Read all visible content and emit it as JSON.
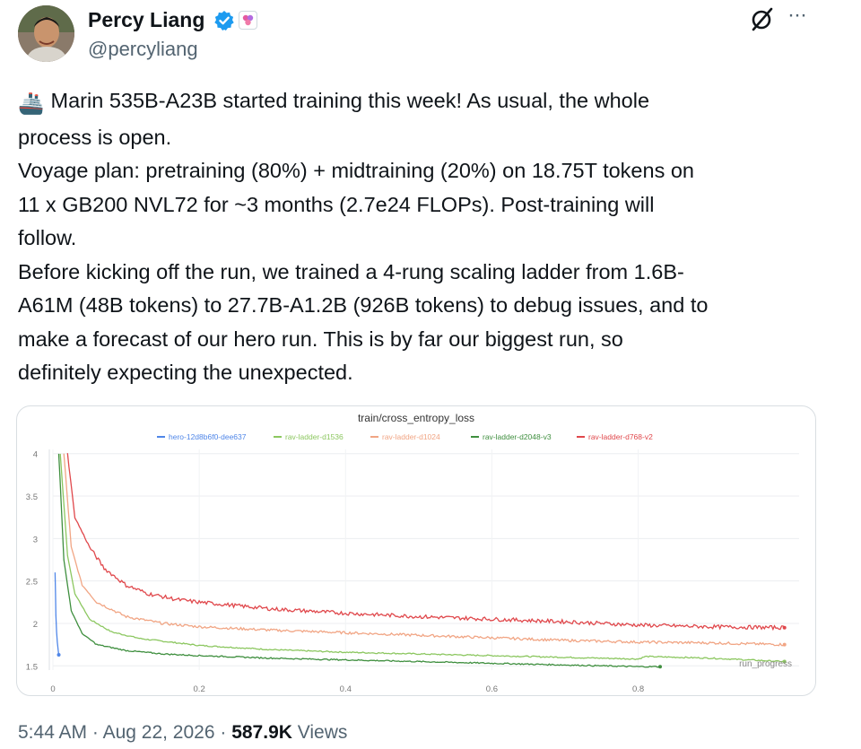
{
  "author": {
    "name": "Percy Liang",
    "handle": "@percyliang",
    "verified_icon": "verified-badge-icon",
    "affiliation_icon": "affiliation-badge-icon"
  },
  "actions": {
    "grok_icon": "grok-icon",
    "more_label": "···"
  },
  "post": {
    "emoji": "🚢",
    "lines": [
      "Marin 535B-A23B started training this week! As usual, the whole",
      "process is open.",
      "Voyage plan: pretraining (80%) + midtraining (20%) on 18.75T tokens on",
      "11 x GB200 NVL72 for ~3 months (2.7e24 FLOPs).  Post-training will",
      "follow.",
      "Before kicking off the run, we trained a 4-rung scaling ladder from 1.6B-",
      "A61M (48B tokens) to 27.7B-A1.2B (926B tokens) to debug issues, and to",
      "make a forecast of our hero run.  This is by far our biggest run, so",
      "definitely expecting the unexpected."
    ]
  },
  "chart_data": {
    "type": "line",
    "title": "train/cross_entropy_loss",
    "xlabel": "run_progress",
    "ylabel": "",
    "xlim": [
      0,
      1.02
    ],
    "ylim": [
      1.45,
      4.05
    ],
    "xticks": [
      "0",
      "0.2",
      "0.4",
      "0.6",
      "0.8"
    ],
    "yticks": [
      "1.5",
      "2",
      "2.5",
      "3",
      "3.5",
      "4"
    ],
    "grid": true,
    "legend_position": "top-center",
    "series": [
      {
        "name": "hero-12d8b6f0-dee637",
        "color": "#4f86e8",
        "x": [
          0.003,
          0.004,
          0.005,
          0.006,
          0.007,
          0.008
        ],
        "y": [
          2.6,
          2.1,
          1.9,
          1.78,
          1.7,
          1.63
        ]
      },
      {
        "name": "rav-ladder-d1536",
        "color": "#8cc760",
        "x": [
          0.01,
          0.02,
          0.03,
          0.05,
          0.08,
          0.12,
          0.2,
          0.3,
          0.4,
          0.5,
          0.6,
          0.7,
          0.8,
          0.81,
          0.9,
          1.0
        ],
        "y": [
          4.0,
          2.8,
          2.35,
          2.05,
          1.9,
          1.82,
          1.74,
          1.69,
          1.66,
          1.64,
          1.62,
          1.6,
          1.58,
          1.61,
          1.59,
          1.55
        ]
      },
      {
        "name": "rav-ladder-d1024",
        "color": "#f1a584",
        "x": [
          0.015,
          0.025,
          0.04,
          0.06,
          0.1,
          0.15,
          0.2,
          0.3,
          0.4,
          0.5,
          0.6,
          0.7,
          0.8,
          0.9,
          1.0
        ],
        "y": [
          4.0,
          2.9,
          2.45,
          2.25,
          2.08,
          2.0,
          1.96,
          1.92,
          1.89,
          1.86,
          1.83,
          1.8,
          1.78,
          1.77,
          1.75
        ]
      },
      {
        "name": "rav-ladder-d2048-v3",
        "color": "#3f8f3f",
        "x": [
          0.008,
          0.015,
          0.025,
          0.04,
          0.06,
          0.1,
          0.15,
          0.2,
          0.3,
          0.4,
          0.5,
          0.6,
          0.7,
          0.8,
          0.83
        ],
        "y": [
          4.0,
          2.75,
          2.15,
          1.88,
          1.75,
          1.68,
          1.64,
          1.62,
          1.59,
          1.57,
          1.55,
          1.53,
          1.51,
          1.49,
          1.49
        ]
      },
      {
        "name": "rav-ladder-d768-v2",
        "color": "#e0484c",
        "x": [
          0.02,
          0.03,
          0.05,
          0.07,
          0.1,
          0.13,
          0.17,
          0.2,
          0.3,
          0.4,
          0.5,
          0.6,
          0.7,
          0.8,
          0.9,
          1.0
        ],
        "y": [
          4.0,
          3.25,
          2.9,
          2.65,
          2.45,
          2.35,
          2.28,
          2.25,
          2.17,
          2.12,
          2.08,
          2.05,
          2.02,
          1.98,
          1.96,
          1.95
        ]
      }
    ]
  },
  "footer": {
    "time": "5:44 AM",
    "date": "Aug 22, 2026",
    "views_count": "587.9K",
    "views_label": "Views"
  }
}
